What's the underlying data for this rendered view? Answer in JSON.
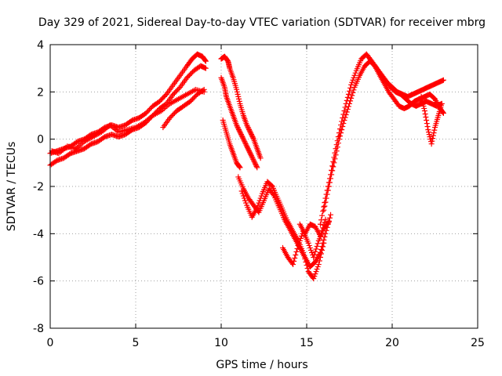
{
  "chart_data": {
    "type": "scatter",
    "title": "Day 329 of 2021, Sidereal Day-to-day VTEC variation (SDTVAR) for receiver mbrg",
    "xlabel": "GPS time / hours",
    "ylabel": "SDTVAR / TECUs",
    "xlim": [
      0,
      25
    ],
    "ylim": [
      -8,
      4
    ],
    "xticks": [
      0,
      5,
      10,
      15,
      20,
      25
    ],
    "yticks": [
      -8,
      -6,
      -4,
      -2,
      0,
      2,
      4
    ],
    "grid": true,
    "marker": "+",
    "color": "#ff0000",
    "series": [
      {
        "name": "SDTVAR",
        "tracks": [
          {
            "x": [
              0.0,
              0.4,
              0.8,
              1.2,
              1.6,
              2.0,
              2.4,
              2.8,
              3.2,
              3.6,
              4.0,
              4.4,
              4.8,
              5.2,
              5.6,
              6.0,
              6.4,
              6.8,
              7.2,
              7.6,
              8.0,
              8.3,
              8.6,
              8.9,
              9.1
            ],
            "y": [
              -0.6,
              -0.5,
              -0.4,
              -0.3,
              -0.1,
              0.0,
              0.2,
              0.3,
              0.5,
              0.6,
              0.5,
              0.6,
              0.8,
              0.9,
              1.1,
              1.4,
              1.6,
              1.9,
              2.3,
              2.7,
              3.1,
              3.4,
              3.6,
              3.5,
              3.3
            ]
          },
          {
            "x": [
              0.0,
              0.4,
              0.8,
              1.2,
              1.6,
              2.0,
              2.4,
              2.8,
              3.2,
              3.6,
              4.0,
              4.4,
              4.8,
              5.2,
              5.6,
              6.0,
              6.4,
              6.8,
              7.2,
              7.6,
              8.0,
              8.4,
              8.8,
              9.1
            ],
            "y": [
              -1.1,
              -0.9,
              -0.8,
              -0.6,
              -0.5,
              -0.4,
              -0.2,
              -0.1,
              0.1,
              0.2,
              0.1,
              0.2,
              0.4,
              0.5,
              0.7,
              1.0,
              1.3,
              1.5,
              1.9,
              2.2,
              2.6,
              2.9,
              3.1,
              3.0
            ]
          },
          {
            "x": [
              0.1,
              0.5,
              1.0,
              1.5,
              2.0,
              2.5,
              3.0,
              3.5,
              4.0,
              4.5,
              5.0,
              5.5,
              6.0,
              6.5,
              7.0,
              7.5,
              8.0,
              8.5,
              9.0
            ],
            "y": [
              -0.5,
              -0.6,
              -0.3,
              -0.4,
              -0.1,
              0.1,
              0.3,
              0.6,
              0.3,
              0.4,
              0.5,
              0.7,
              1.0,
              1.2,
              1.5,
              1.7,
              1.9,
              2.1,
              2.0
            ]
          },
          {
            "x": [
              6.6,
              7.0,
              7.4,
              7.8,
              8.2,
              8.6,
              9.0
            ],
            "y": [
              0.5,
              0.9,
              1.2,
              1.4,
              1.6,
              1.9,
              2.1
            ]
          },
          {
            "x": [
              10.0,
              10.2,
              10.4,
              10.5,
              10.7,
              10.9,
              11.1,
              11.3,
              11.5,
              11.7,
              11.9,
              12.1,
              12.3
            ],
            "y": [
              3.4,
              3.5,
              3.3,
              3.0,
              2.6,
              2.1,
              1.5,
              1.0,
              0.6,
              0.3,
              0.0,
              -0.4,
              -0.8
            ]
          },
          {
            "x": [
              10.0,
              10.2,
              10.3,
              10.5,
              10.7,
              10.9,
              11.1,
              11.3,
              11.5,
              11.7,
              11.9,
              12.1
            ],
            "y": [
              2.6,
              2.2,
              1.8,
              1.4,
              1.0,
              0.6,
              0.3,
              0.0,
              -0.3,
              -0.6,
              -0.9,
              -1.2
            ]
          },
          {
            "x": [
              10.1,
              10.3,
              10.5,
              10.7,
              10.9,
              11.1
            ],
            "y": [
              0.8,
              0.3,
              -0.2,
              -0.6,
              -1.0,
              -1.2
            ]
          },
          {
            "x": [
              11.0,
              11.3,
              11.6,
              11.9,
              12.2,
              12.5,
              12.8,
              13.1,
              13.4,
              13.7,
              14.0,
              14.3,
              14.6,
              14.9,
              15.2,
              15.5,
              15.8,
              16.1,
              16.4
            ],
            "y": [
              -1.6,
              -2.1,
              -2.5,
              -2.8,
              -3.1,
              -2.6,
              -2.1,
              -2.4,
              -2.9,
              -3.4,
              -3.8,
              -4.2,
              -4.6,
              -5.0,
              -5.4,
              -5.2,
              -4.8,
              -4.0,
              -3.2
            ]
          },
          {
            "x": [
              11.2,
              11.5,
              11.8,
              12.1,
              12.4,
              12.7,
              13.0,
              13.3,
              13.6,
              13.9,
              14.2,
              14.5,
              14.8,
              15.1,
              15.4,
              15.7,
              16.0
            ],
            "y": [
              -2.2,
              -2.8,
              -3.3,
              -2.9,
              -2.3,
              -1.8,
              -2.0,
              -2.5,
              -3.0,
              -3.5,
              -3.9,
              -4.3,
              -4.8,
              -5.6,
              -5.9,
              -5.3,
              -4.4
            ]
          },
          {
            "x": [
              13.6,
              13.9,
              14.2,
              14.5,
              14.8,
              15.1,
              15.4,
              15.7,
              16.0,
              16.3
            ],
            "y": [
              -4.6,
              -5.0,
              -5.3,
              -4.5,
              -3.9,
              -4.4,
              -5.0,
              -4.3,
              -3.8,
              -3.5
            ]
          },
          {
            "x": [
              14.6,
              14.9,
              15.2,
              15.5,
              15.8,
              16.1
            ],
            "y": [
              -3.6,
              -4.0,
              -3.6,
              -3.7,
              -4.1,
              -3.4
            ]
          },
          {
            "x": [
              15.8,
              16.1,
              16.4,
              16.7,
              17.0,
              17.3,
              17.6,
              17.9,
              18.2,
              18.5,
              18.8,
              19.1,
              19.4,
              19.7,
              20.0,
              20.3,
              20.6,
              20.9,
              21.2,
              21.5,
              21.8,
              22.1,
              22.4,
              22.7,
              23.0
            ],
            "y": [
              -3.6,
              -2.5,
              -1.5,
              -0.4,
              0.6,
              1.5,
              2.3,
              2.9,
              3.4,
              3.6,
              3.3,
              3.0,
              2.7,
              2.4,
              2.2,
              2.0,
              1.9,
              1.8,
              1.9,
              2.0,
              2.1,
              2.2,
              2.3,
              2.4,
              2.5
            ]
          },
          {
            "x": [
              16.0,
              16.3,
              16.6,
              16.9,
              17.2,
              17.5,
              17.8,
              18.1,
              18.4,
              18.7,
              19.0,
              19.3,
              19.6,
              19.9,
              20.2,
              20.5,
              20.8,
              21.1,
              21.4,
              21.7,
              22.0,
              22.3,
              22.6,
              22.9
            ],
            "y": [
              -3.0,
              -2.0,
              -1.0,
              0.0,
              0.8,
              1.5,
              2.2,
              2.7,
              3.1,
              3.3,
              3.1,
              2.8,
              2.5,
              2.2,
              2.0,
              1.9,
              1.7,
              1.5,
              1.4,
              1.5,
              1.6,
              1.5,
              1.4,
              1.5
            ]
          },
          {
            "x": [
              18.6,
              18.9,
              19.2,
              19.5,
              19.8,
              20.1,
              20.4,
              20.7,
              21.0,
              21.3,
              21.6,
              21.9,
              22.2,
              22.5,
              22.8,
              23.0
            ],
            "y": [
              3.5,
              3.2,
              2.8,
              2.4,
              2.0,
              1.7,
              1.4,
              1.3,
              1.4,
              1.6,
              1.7,
              1.8,
              1.9,
              1.7,
              1.3,
              1.1
            ]
          },
          {
            "x": [
              21.7,
              21.9,
              22.1,
              22.3,
              22.5,
              22.7,
              22.9
            ],
            "y": [
              1.8,
              1.2,
              0.4,
              -0.2,
              0.5,
              1.0,
              1.5
            ]
          }
        ]
      }
    ]
  }
}
